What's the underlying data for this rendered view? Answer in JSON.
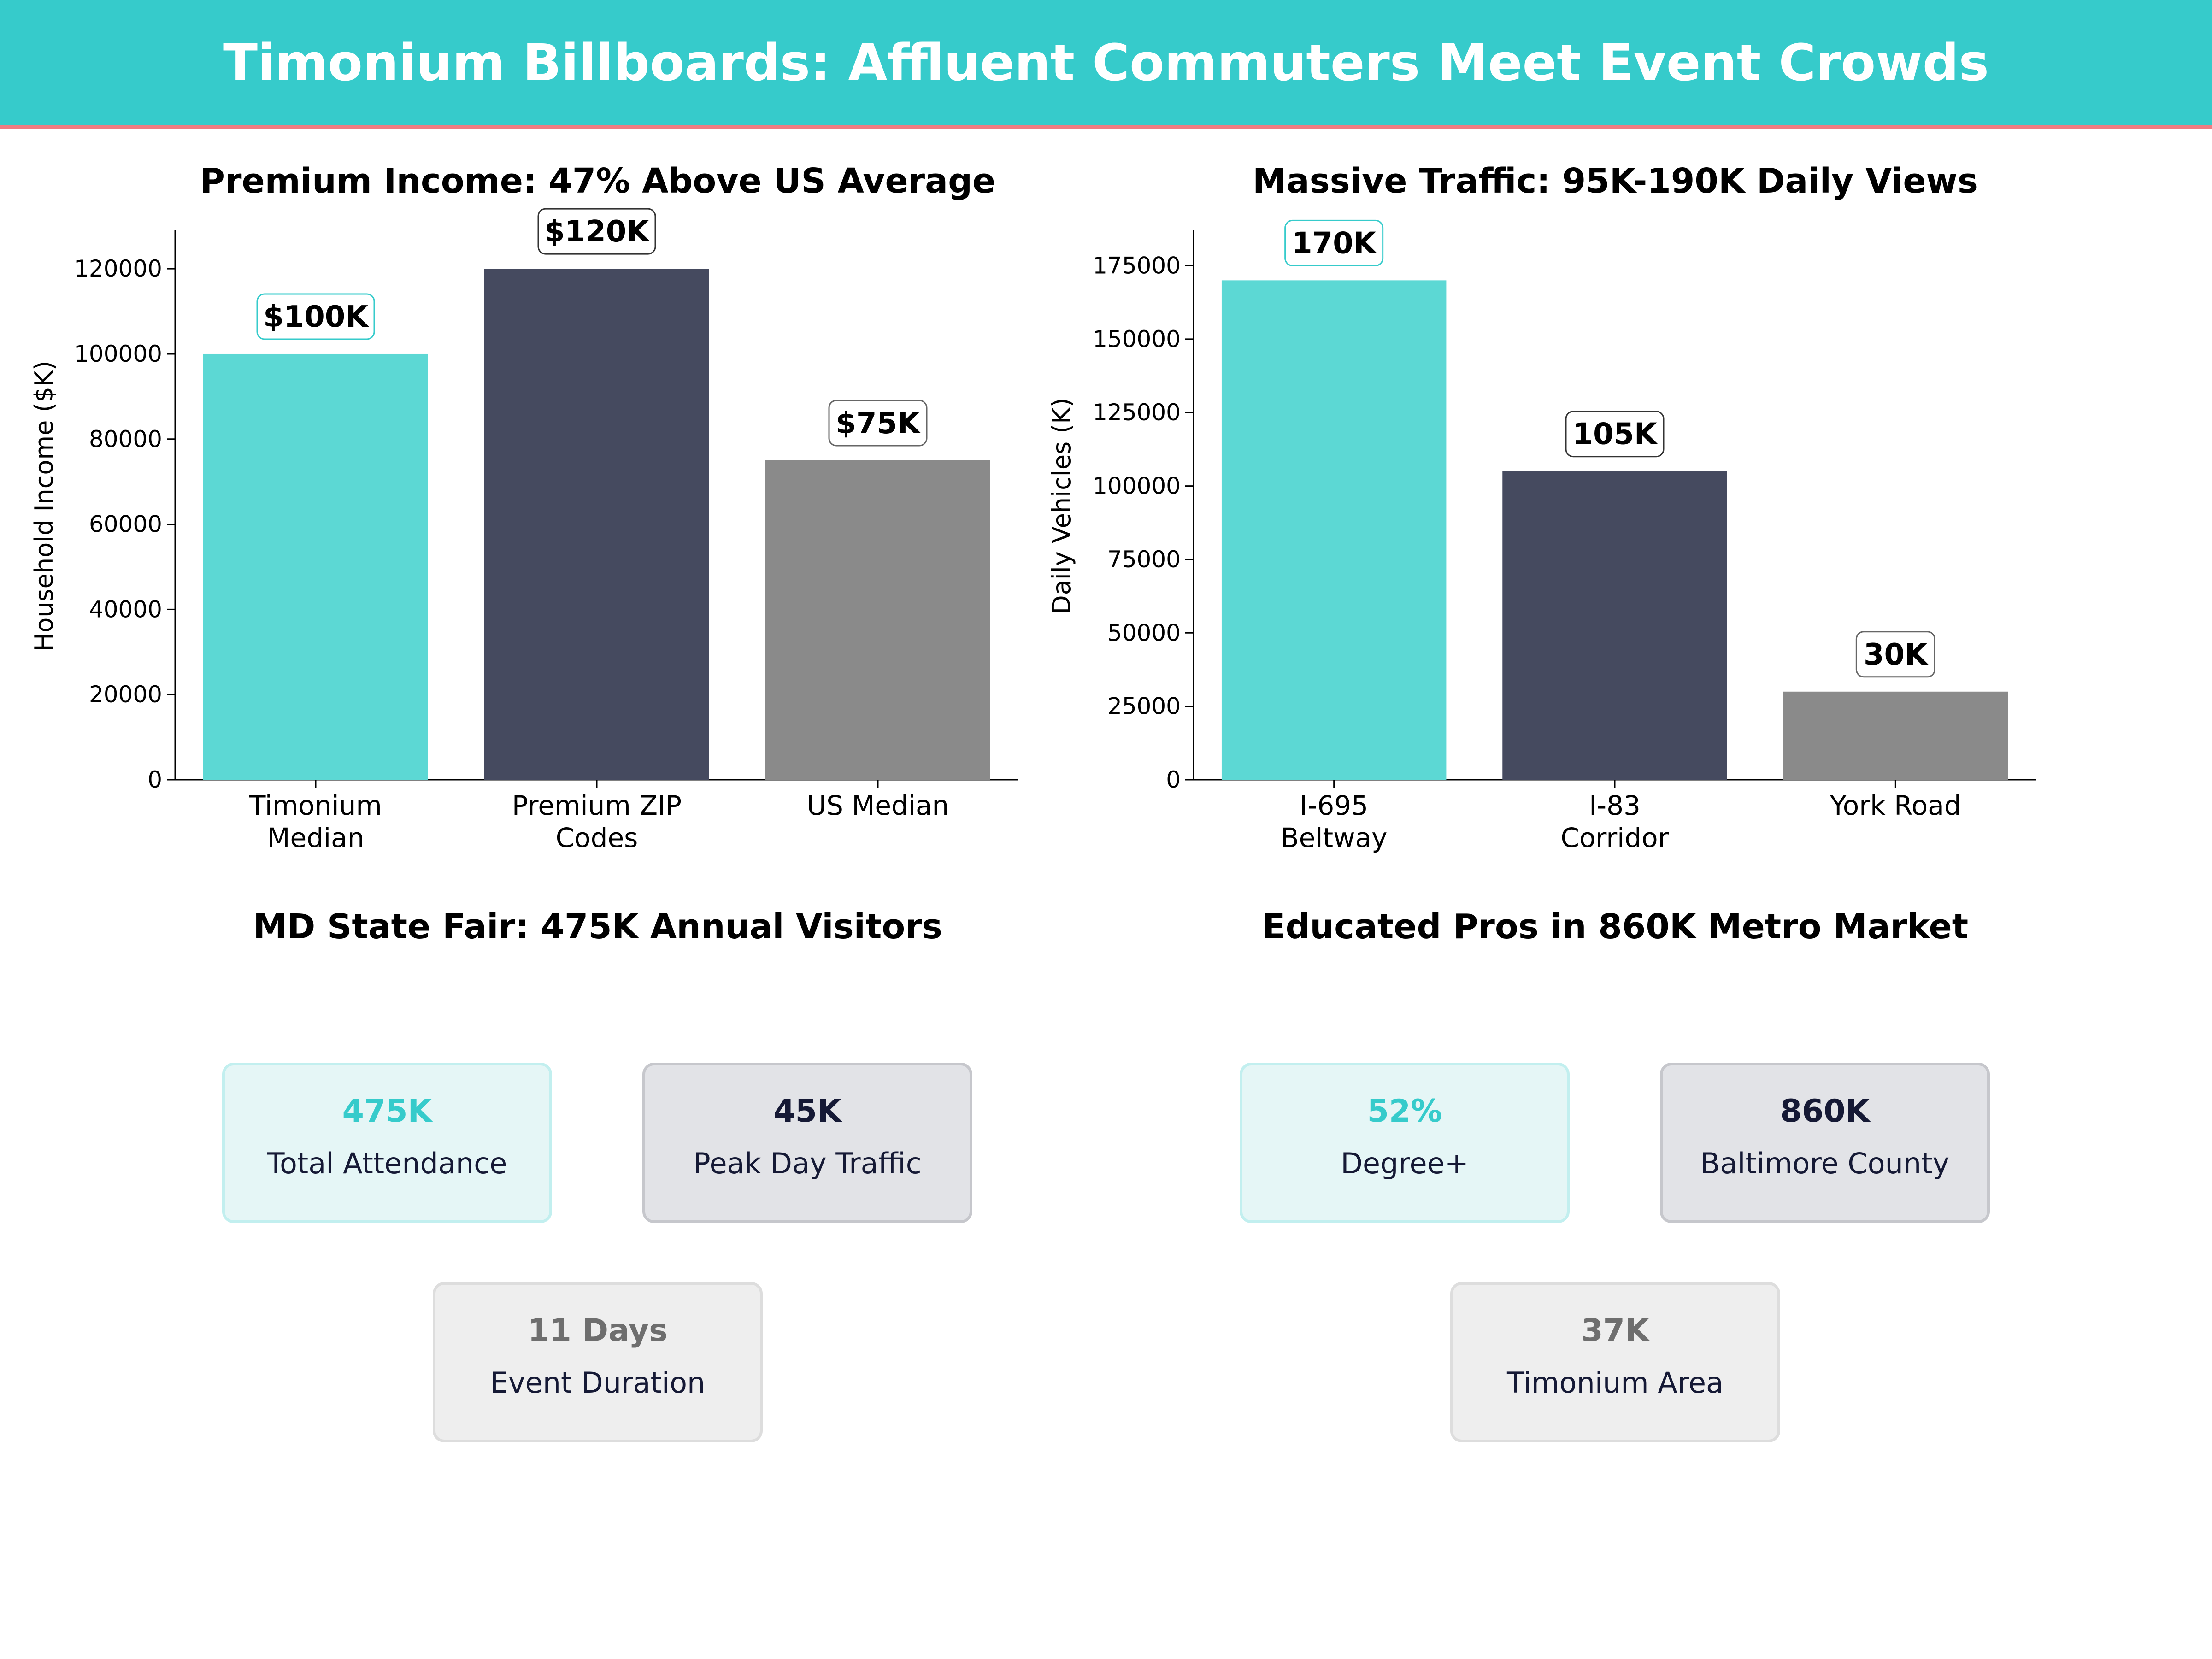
{
  "header": {
    "title": "Timonium Billboards: Affluent Commuters Meet Event Crowds"
  },
  "colors": {
    "banner": "#36CBCB",
    "banner_rule": "#F07C82",
    "teal": "#5CD8D4",
    "navy": "#454A5F",
    "gray": "#8A8A8A",
    "text_dark": "#151935"
  },
  "chart_data": [
    {
      "type": "bar",
      "title": "Premium Income: 47% Above US Average",
      "ylabel": "Household Income ($K)",
      "xlabel": "",
      "ylim": [
        0,
        129000
      ],
      "yticks": [
        0,
        20000,
        40000,
        60000,
        80000,
        100000,
        120000
      ],
      "categories": [
        [
          "Timonium",
          "Median"
        ],
        [
          "Premium ZIP",
          "Codes"
        ],
        [
          "US Median"
        ]
      ],
      "values": [
        100000,
        120000,
        75000
      ],
      "data_labels": [
        "$100K",
        "$120K",
        "$75K"
      ],
      "bar_colors": [
        "#5CD8D4",
        "#454A5F",
        "#8A8A8A"
      ],
      "label_borders": [
        "#36CBCB",
        "#333333",
        "#666666"
      ],
      "grid": false,
      "legend": "none"
    },
    {
      "type": "bar",
      "title": "Massive Traffic: 95K-190K Daily Views",
      "ylabel": "Daily Vehicles (K)",
      "xlabel": "",
      "ylim": [
        0,
        187000
      ],
      "yticks": [
        0,
        25000,
        50000,
        75000,
        100000,
        125000,
        150000,
        175000
      ],
      "categories": [
        [
          "I-695",
          "Beltway"
        ],
        [
          "I-83",
          "Corridor"
        ],
        [
          "York Road"
        ]
      ],
      "values": [
        170000,
        105000,
        30000
      ],
      "data_labels": [
        "170K",
        "105K",
        "30K"
      ],
      "bar_colors": [
        "#5CD8D4",
        "#454A5F",
        "#8A8A8A"
      ],
      "label_borders": [
        "#36CBCB",
        "#333333",
        "#666666"
      ],
      "grid": false,
      "legend": "none"
    }
  ],
  "panels": [
    {
      "title": "MD State Fair: 475K Annual Visitors",
      "cards": [
        {
          "value": "475K",
          "label": "Total Attendance",
          "style": "teal"
        },
        {
          "value": "45K",
          "label": "Peak Day Traffic",
          "style": "navy"
        },
        {
          "value": "11 Days",
          "label": "Event Duration",
          "style": "gray"
        }
      ]
    },
    {
      "title": "Educated Pros in 860K Metro Market",
      "cards": [
        {
          "value": "52%",
          "label": "Degree+",
          "style": "teal"
        },
        {
          "value": "860K",
          "label": "Baltimore County",
          "style": "navy"
        },
        {
          "value": "37K",
          "label": "Timonium Area",
          "style": "gray"
        }
      ]
    }
  ]
}
